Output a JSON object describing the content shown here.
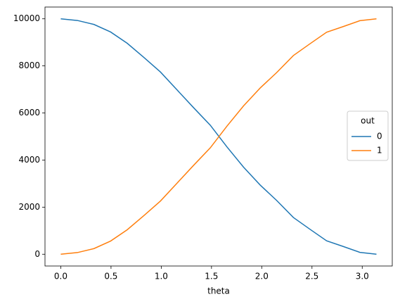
{
  "chart_data": {
    "type": "line",
    "x": [
      0,
      0.1653,
      0.3307,
      0.496,
      0.6614,
      0.8267,
      0.9921,
      1.1574,
      1.3228,
      1.4881,
      1.6535,
      1.8188,
      1.9842,
      2.1495,
      2.3149,
      2.4802,
      2.6456,
      2.8109,
      2.9762,
      3.1416
    ],
    "series": [
      {
        "name": "0",
        "color": "#1f77b4",
        "values": [
          10000,
          9930,
          9760,
          9440,
          8960,
          8360,
          7740,
          6980,
          6220,
          5480,
          4560,
          3700,
          2940,
          2280,
          1560,
          1060,
          570,
          330,
          80,
          0
        ]
      },
      {
        "name": "1",
        "color": "#ff7f0e",
        "values": [
          0,
          70,
          240,
          560,
          1040,
          1640,
          2260,
          3020,
          3780,
          4520,
          5440,
          6300,
          7060,
          7720,
          8440,
          8940,
          9430,
          9670,
          9920,
          10000
        ]
      }
    ],
    "x_label": "theta",
    "legend_title": "out",
    "legend": "right",
    "xlim": [
      -0.157,
      3.299
    ],
    "ylim": [
      -500,
      10500
    ],
    "xticks": [
      {
        "value": 0,
        "label": "0.0"
      },
      {
        "value": 0.5,
        "label": "0.5"
      },
      {
        "value": 1,
        "label": "1.0"
      },
      {
        "value": 1.5,
        "label": "1.5"
      },
      {
        "value": 2,
        "label": "2.0"
      },
      {
        "value": 2.5,
        "label": "2.5"
      },
      {
        "value": 3,
        "label": "3.0"
      }
    ],
    "yticks": [
      0,
      2000,
      4000,
      6000,
      8000,
      10000
    ],
    "grid": false
  }
}
